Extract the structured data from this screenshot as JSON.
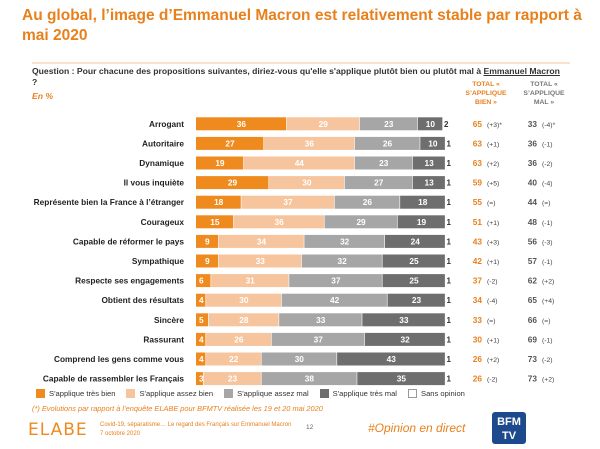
{
  "page": {
    "title": "Au global, l’image d’Emmanuel Macron est relativement stable par rapport à mai 2020",
    "question_prefix": "Question : Pour chacune des propositions suivantes, diriez-vous qu'elle s'applique plutôt bien ou plutôt mal à ",
    "question_subject": "Emmanuel Macron",
    "question_suffix": " ?",
    "unit": "En %",
    "header_good": "TOTAL « S’APPLIQUE BIEN »",
    "header_bad": "TOTAL « S’APPLIQUE MAL »",
    "footnote_evolution": "(*) Evolutions par rapport à l’enquête ELABE pour BFMTV réalisée les 19 et 20 mai 2020",
    "logo": "ELABE",
    "footer_line1": "Covid-19, séparatisme… Le regard des Français sur Emmanuel Macron",
    "footer_line2": "7 octobre 2020",
    "page_number": "12",
    "hashtag": "#Opinion en direct",
    "bfm_logo_line1": "BFM",
    "bfm_logo_line2": "TV"
  },
  "chart_data": {
    "type": "stacked-bar-horizontal",
    "title": "Au global, l’image d’Emmanuel Macron est relativement stable par rapport à mai 2020",
    "unit": "En %",
    "series": [
      {
        "name": "S'applique très bien",
        "color": "#ef8a1f",
        "text_color": "#ffffff"
      },
      {
        "name": "S'applique assez bien",
        "color": "#f6c49d",
        "text_color": "#ffffff"
      },
      {
        "name": "S'applique assez mal",
        "color": "#a6a6a6",
        "text_color": "#ffffff"
      },
      {
        "name": "S'applique très mal",
        "color": "#6e6e6e",
        "text_color": "#ffffff"
      },
      {
        "name": "Sans opinion",
        "color": "#ffffff",
        "text_color": "#333333"
      }
    ],
    "rows": [
      {
        "label": "Arrogant",
        "values": [
          36,
          29,
          23,
          10,
          2
        ],
        "total_good": "65",
        "evo_good": "(+3)*",
        "total_bad": "33",
        "evo_bad": "(-4)*"
      },
      {
        "label": "Autoritaire",
        "values": [
          27,
          36,
          26,
          10,
          1
        ],
        "total_good": "63",
        "evo_good": "(+1)",
        "total_bad": "36",
        "evo_bad": "(-1)"
      },
      {
        "label": "Dynamique",
        "values": [
          19,
          44,
          23,
          13,
          1
        ],
        "total_good": "63",
        "evo_good": "(+2)",
        "total_bad": "36",
        "evo_bad": "(-2)"
      },
      {
        "label": "Il vous inquiète",
        "values": [
          29,
          30,
          27,
          13,
          1
        ],
        "total_good": "59",
        "evo_good": "(+5)",
        "total_bad": "40",
        "evo_bad": "(-4)"
      },
      {
        "label": "Représente bien la France à l’étranger",
        "values": [
          18,
          37,
          26,
          18,
          1
        ],
        "total_good": "55",
        "evo_good": "(=)",
        "total_bad": "44",
        "evo_bad": "(=)"
      },
      {
        "label": "Courageux",
        "values": [
          15,
          36,
          29,
          19,
          1
        ],
        "total_good": "51",
        "evo_good": "(+1)",
        "total_bad": "48",
        "evo_bad": "(-1)"
      },
      {
        "label": "Capable de réformer le pays",
        "values": [
          9,
          34,
          32,
          24,
          1
        ],
        "total_good": "43",
        "evo_good": "(+3)",
        "total_bad": "56",
        "evo_bad": "(-3)"
      },
      {
        "label": "Sympathique",
        "values": [
          9,
          33,
          32,
          25,
          1
        ],
        "total_good": "42",
        "evo_good": "(+1)",
        "total_bad": "57",
        "evo_bad": "(-1)"
      },
      {
        "label": "Respecte ses engagements",
        "values": [
          6,
          31,
          37,
          25,
          1
        ],
        "total_good": "37",
        "evo_good": "(-2)",
        "total_bad": "62",
        "evo_bad": "(+2)"
      },
      {
        "label": "Obtient des résultats",
        "values": [
          4,
          30,
          42,
          23,
          1
        ],
        "total_good": "34",
        "evo_good": "(-4)",
        "total_bad": "65",
        "evo_bad": "(+4)"
      },
      {
        "label": "Sincère",
        "values": [
          5,
          28,
          33,
          33,
          1
        ],
        "total_good": "33",
        "evo_good": "(=)",
        "total_bad": "66",
        "evo_bad": "(=)"
      },
      {
        "label": "Rassurant",
        "values": [
          4,
          26,
          37,
          32,
          1
        ],
        "total_good": "30",
        "evo_good": "(+1)",
        "total_bad": "69",
        "evo_bad": "(-1)"
      },
      {
        "label": "Comprend les gens comme vous",
        "values": [
          4,
          22,
          30,
          43,
          1
        ],
        "total_good": "26",
        "evo_good": "(+2)",
        "total_bad": "73",
        "evo_bad": "(-2)"
      },
      {
        "label": "Capable de rassembler les Français",
        "values": [
          3,
          23,
          38,
          35,
          1
        ],
        "total_good": "26",
        "evo_good": "(-2)",
        "total_bad": "73",
        "evo_bad": "(+2)"
      }
    ]
  }
}
